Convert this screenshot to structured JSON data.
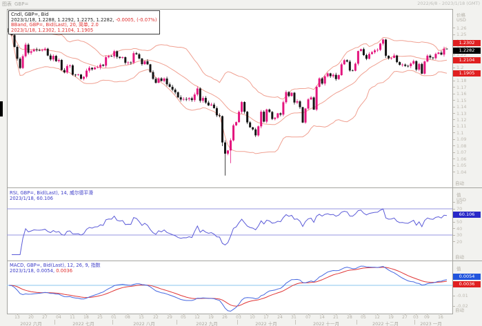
{
  "window": {
    "app_label": "图表",
    "symbol": "GBP=",
    "date_range": "2022/6/8 - 2023/1/18 (GMT)"
  },
  "colors": {
    "candle_up": "#e4157e",
    "candle_down": "#141414",
    "bollinger": "#f0a091",
    "rsi_line": "#5a5ad8",
    "rsi_level": "#9595e0",
    "macd_line": "#4466e0",
    "signal_line": "#e03535",
    "zero_line": "#9fd0f0",
    "box_red": "#e02020",
    "box_black": "#000000",
    "box_navy": "#2929c8",
    "box_blue": "#2255dd"
  },
  "price_pane": {
    "legend": {
      "line1": "Cndl, GBP=, Bid",
      "line2_black": "2023/1/18, 1.2288, 1.2292, 1.2275, 1.2282,",
      "line2_red": " -0.0005, (-0.07%)",
      "line3": "BBand, GBP=, Bid(Last), 20, 简单, 2.0",
      "line4": "2023/1/18, 1.2302, 1.2104, 1.1905"
    },
    "axis": {
      "title": "价格",
      "unit": "USD",
      "auto": "自动",
      "ticks": [
        "1.26",
        "1.25",
        "1.24",
        "1.23",
        "1.22",
        "1.21",
        "1.2",
        "1.19",
        "1.18",
        "1.17",
        "1.16",
        "1.15",
        "1.14",
        "1.13",
        "1.12",
        "1.11",
        "1.1",
        "1.09",
        "1.08",
        "1.07",
        "1.06",
        "1.05",
        "1.04"
      ],
      "boxes": [
        {
          "id": "bb-upper-box",
          "label": "1.2302",
          "value": 1.2302,
          "bg": "#e02020"
        },
        {
          "id": "last-price-box",
          "label": "1.2282",
          "value": 1.2282,
          "bg": "#000000"
        },
        {
          "id": "bb-mid-box",
          "label": "1.2104",
          "value": 1.2104,
          "bg": "#e02020"
        },
        {
          "id": "bb-lower-box",
          "label": "1.1905",
          "value": 1.1905,
          "bg": "#e02020"
        }
      ]
    }
  },
  "rsi_pane": {
    "legend": {
      "line1": "RSI, GBP=, Bid(Last), 14, 威尔德平滑",
      "line2": "2023/1/18, 60.106"
    },
    "axis": {
      "title": "值",
      "unit": "USD",
      "auto": "自动",
      "ticks": [
        "80",
        "70",
        "60",
        "50",
        "40",
        "30",
        "20"
      ],
      "box": {
        "id": "rsi-value-box",
        "label": "60.106",
        "value": 60.106,
        "bg": "#2929c8"
      }
    },
    "levels": [
      70,
      30
    ]
  },
  "macd_pane": {
    "legend": {
      "line1": "MACD, GBP=, Bid(Last), 12, 26, 9, 指数",
      "line2_blue": "2023/1/18, 0.0054,",
      "line2_red": " 0.0036"
    },
    "axis": {
      "title": "值",
      "auto": "自动",
      "ticks": [
        "-0.01",
        "-0.02"
      ],
      "boxes": [
        {
          "id": "macd-value-box",
          "label": "0.0054",
          "value": 0.0054,
          "bg": "#2255dd"
        },
        {
          "id": "signal-value-box",
          "label": "0.0036",
          "value": 0.0036,
          "bg": "#e02020"
        }
      ]
    }
  },
  "time_axis": {
    "day_ticks": [
      [
        3,
        "13"
      ],
      [
        8,
        "20"
      ],
      [
        13,
        "27"
      ],
      [
        18,
        "04"
      ],
      [
        23,
        "11"
      ],
      [
        28,
        "18"
      ],
      [
        33,
        "25"
      ],
      [
        38,
        "01"
      ],
      [
        43,
        "08"
      ],
      [
        48,
        "15"
      ],
      [
        53,
        "22"
      ],
      [
        58,
        "29"
      ],
      [
        63,
        "05"
      ],
      [
        68,
        "12"
      ],
      [
        73,
        "19"
      ],
      [
        78,
        "26"
      ],
      [
        83,
        "03"
      ],
      [
        88,
        "10"
      ],
      [
        93,
        "17"
      ],
      [
        98,
        "24"
      ],
      [
        103,
        "31"
      ],
      [
        108,
        "07"
      ],
      [
        113,
        "14"
      ],
      [
        118,
        "21"
      ],
      [
        123,
        "28"
      ],
      [
        128,
        "05"
      ],
      [
        133,
        "12"
      ],
      [
        138,
        "19"
      ],
      [
        143,
        "27"
      ],
      [
        147,
        "03"
      ],
      [
        151,
        "09"
      ],
      [
        156,
        "16"
      ]
    ],
    "months": [
      {
        "label": "2022 六月",
        "from": 0,
        "to": 16
      },
      {
        "label": "2022 七月",
        "from": 17,
        "to": 37
      },
      {
        "label": "2022 八月",
        "from": 38,
        "to": 60
      },
      {
        "label": "2022 九月",
        "from": 61,
        "to": 82
      },
      {
        "label": "2022 十月",
        "from": 83,
        "to": 103
      },
      {
        "label": "2022 十一月",
        "from": 104,
        "to": 125
      },
      {
        "label": "2022 十二月",
        "from": 126,
        "to": 146
      },
      {
        "label": "2023 一月",
        "from": 147,
        "to": 158
      }
    ]
  },
  "chart_data": {
    "type": "candlestick",
    "symbol": "GBP=",
    "interval": "daily",
    "visible_range": "2022/6/8 - 2023/1/18",
    "y_axis": {
      "min": 1.04,
      "max": 1.26
    },
    "prior_close": 1.2599,
    "closes": [
      1.2537,
      1.2497,
      1.2316,
      1.2135,
      1.1993,
      1.2173,
      1.235,
      1.2226,
      1.2248,
      1.2276,
      1.2265,
      1.2261,
      1.2268,
      1.2287,
      1.2183,
      1.2124,
      1.2178,
      1.2098,
      1.2116,
      1.1962,
      1.1926,
      1.2023,
      1.2033,
      1.1891,
      1.1888,
      1.1893,
      1.1828,
      1.1859,
      1.1953,
      1.1996,
      1.1973,
      1.2,
      1.2003,
      1.2043,
      1.2028,
      1.2158,
      1.2175,
      1.2172,
      1.2249,
      1.2163,
      1.2148,
      1.2158,
      1.2073,
      1.2078,
      1.2076,
      1.2219,
      1.2203,
      1.2138,
      1.2052,
      1.2096,
      1.2049,
      1.1931,
      1.1827,
      1.1767,
      1.1834,
      1.1795,
      1.1832,
      1.1744,
      1.1706,
      1.1662,
      1.1622,
      1.1545,
      1.1511,
      1.1519,
      1.1517,
      1.1531,
      1.1503,
      1.1588,
      1.168,
      1.1493,
      1.1536,
      1.1465,
      1.1421,
      1.1434,
      1.138,
      1.127,
      1.1258,
      1.0856,
      1.0685,
      1.0734,
      1.0888,
      1.1117,
      1.1166,
      1.1324,
      1.1473,
      1.1325,
      1.1162,
      1.1087,
      1.1055,
      1.0964,
      1.1102,
      1.1325,
      1.1174,
      1.1359,
      1.1322,
      1.1215,
      1.1234,
      1.1301,
      1.1281,
      1.147,
      1.1625,
      1.1565,
      1.1615,
      1.1466,
      1.1484,
      1.1395,
      1.116,
      1.1374,
      1.1514,
      1.1543,
      1.1358,
      1.1706,
      1.1834,
      1.1755,
      1.1866,
      1.1911,
      1.1868,
      1.1889,
      1.1824,
      1.1884,
      1.2049,
      1.2112,
      1.2091,
      1.1955,
      1.1951,
      1.2059,
      1.2252,
      1.2281,
      1.219,
      1.2134,
      1.2207,
      1.2234,
      1.2262,
      1.227,
      1.2365,
      1.2427,
      1.218,
      1.214,
      1.2148,
      1.2183,
      1.2083,
      1.2041,
      1.2045,
      1.2025,
      1.2021,
      1.206,
      1.2098,
      1.1969,
      1.2054,
      1.1907,
      1.2093,
      1.2181,
      1.2153,
      1.2143,
      1.2208,
      1.2228,
      1.2198,
      1.2288,
      1.2282
    ],
    "wick_overrides": {
      "77": [
        null,
        1.08
      ],
      "78": [
        1.089,
        1.035
      ],
      "80": [
        1.092,
        1.054
      ],
      "158": [
        1.2292,
        1.2275
      ]
    },
    "indicators": {
      "bollinger": {
        "period": 20,
        "ma_type": "简单",
        "width": 2.0,
        "last": {
          "upper": 1.2302,
          "middle": 1.2104,
          "lower": 1.1905
        }
      },
      "rsi": {
        "period": 14,
        "smoothing": "威尔德平滑",
        "last": 60.106,
        "levels": [
          70,
          30
        ]
      },
      "macd": {
        "fast": 12,
        "slow": 26,
        "signal": 9,
        "ma_type": "指数",
        "last_macd": 0.0054,
        "last_signal": 0.0036
      }
    },
    "last_candle": {
      "date": "2023/1/18",
      "open": 1.2288,
      "high": 1.2292,
      "low": 1.2275,
      "close": 1.2282,
      "change": -0.0005,
      "change_pct": "-0.07%"
    }
  }
}
